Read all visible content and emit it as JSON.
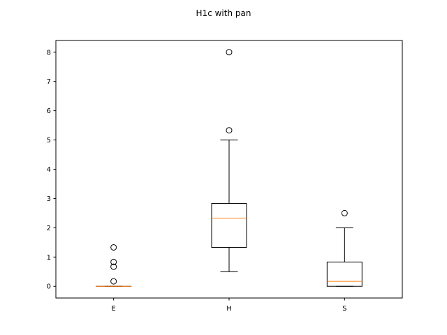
{
  "chart_data": {
    "type": "box",
    "title": "H1c with pan",
    "xlabel": "",
    "ylabel": "",
    "categories": [
      "E",
      "H",
      "S"
    ],
    "boxes": [
      {
        "name": "E",
        "whisker_low": 0,
        "q1": 0,
        "median": 0,
        "q3": 0,
        "whisker_high": 0,
        "fliers": [
          0.17,
          0.67,
          0.83,
          1.33
        ]
      },
      {
        "name": "H",
        "whisker_low": 0.5,
        "q1": 1.33,
        "median": 2.33,
        "q3": 2.83,
        "whisker_high": 5.0,
        "fliers": [
          5.33,
          8.0
        ]
      },
      {
        "name": "S",
        "whisker_low": 0,
        "q1": 0,
        "median": 0.17,
        "q3": 0.83,
        "whisker_high": 2.0,
        "fliers": [
          2.5
        ]
      }
    ],
    "yticks": [
      0,
      1,
      2,
      3,
      4,
      5,
      6,
      7,
      8
    ],
    "ylim": [
      -0.4,
      8.4
    ],
    "grid": false,
    "colors": {
      "box": "#000000",
      "median": "#ff7f0e",
      "flier": "#000000"
    }
  }
}
